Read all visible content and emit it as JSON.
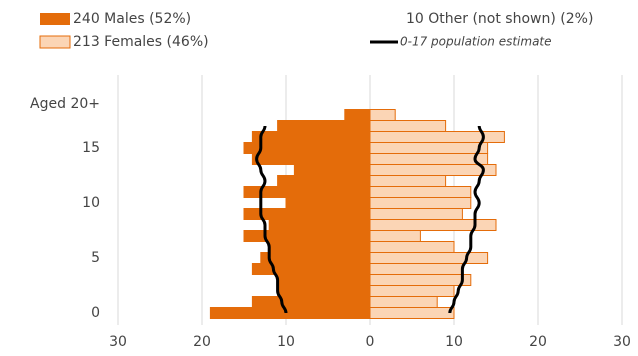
{
  "chart_data": {
    "type": "pyramid",
    "categories": [
      "0",
      null,
      null,
      null,
      null,
      "5",
      null,
      null,
      null,
      null,
      "10",
      null,
      null,
      null,
      null,
      "15",
      null,
      null,
      null,
      "Aged 20+"
    ],
    "series": [
      {
        "name": "240 Males (52%)",
        "color": "#e46c0a",
        "side": "left",
        "values": [
          19,
          14,
          11,
          11,
          14,
          13,
          12,
          15,
          12,
          15,
          10,
          15,
          11,
          9,
          14,
          15,
          14,
          11,
          3,
          null
        ]
      },
      {
        "name": "213 Females (46%)",
        "color": "#fbd5b5",
        "side": "right",
        "values": [
          10,
          8,
          10,
          12,
          11,
          14,
          10,
          6,
          15,
          11,
          12,
          12,
          9,
          15,
          14,
          14,
          16,
          9,
          3,
          null
        ]
      }
    ],
    "other_note": "10 Other (not shown) (2%)",
    "estimate": {
      "name": "0-17 population estimate",
      "color": "#000000",
      "left": [
        10,
        10.5,
        11,
        11,
        11.5,
        12,
        12,
        12.5,
        12.5,
        13,
        13,
        13,
        12.5,
        13,
        13.5,
        13,
        13,
        12.5,
        null,
        null
      ],
      "right": [
        9.5,
        10,
        10.5,
        11,
        11,
        11.5,
        12,
        12,
        12.5,
        12.5,
        13,
        12.5,
        13,
        13.5,
        12.5,
        13,
        13.5,
        13,
        null,
        null
      ]
    },
    "xlim": [
      -30,
      30
    ],
    "xticks": [
      {
        "value": -30,
        "label": "30"
      },
      {
        "value": -20,
        "label": "20"
      },
      {
        "value": -10,
        "label": "10"
      },
      0,
      10,
      20,
      30
    ],
    "grid": true
  }
}
